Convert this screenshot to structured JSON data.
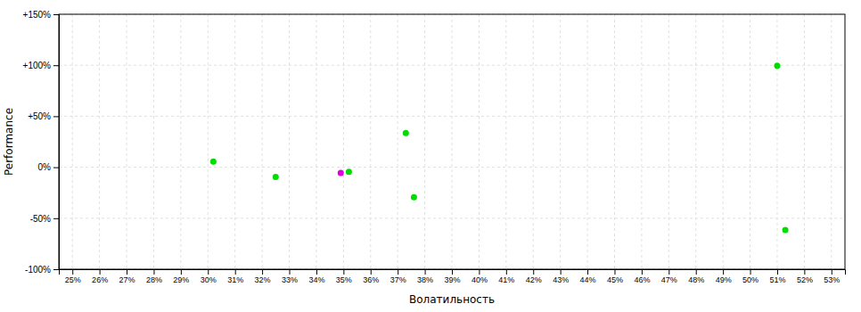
{
  "chart_data": {
    "type": "scatter",
    "xlabel": "Волатильность",
    "ylabel": "Performance",
    "x": [
      0.302,
      0.325,
      0.349,
      0.352,
      0.373,
      0.376,
      0.51,
      0.513
    ],
    "values": [
      0.055,
      -0.095,
      -0.055,
      -0.045,
      0.335,
      -0.295,
      0.995,
      -0.615
    ],
    "colors": [
      "#00dd00",
      "#00dd00",
      "#dd00dd",
      "#00dd00",
      "#00dd00",
      "#00dd00",
      "#00dd00",
      "#00dd00"
    ],
    "xlim": [
      0.245,
      0.535
    ],
    "ylim": [
      -1.0,
      1.5
    ],
    "xticks": [
      {
        "value": 0.25,
        "label": "25%"
      },
      {
        "value": 0.26,
        "label": "26%"
      },
      {
        "value": 0.27,
        "label": "27%"
      },
      {
        "value": 0.28,
        "label": "28%"
      },
      {
        "value": 0.29,
        "label": "29%"
      },
      {
        "value": 0.3,
        "label": "30%"
      },
      {
        "value": 0.31,
        "label": "31%"
      },
      {
        "value": 0.32,
        "label": "32%"
      },
      {
        "value": 0.33,
        "label": "33%"
      },
      {
        "value": 0.34,
        "label": "34%"
      },
      {
        "value": 0.35,
        "label": "35%"
      },
      {
        "value": 0.36,
        "label": "36%"
      },
      {
        "value": 0.37,
        "label": "37%"
      },
      {
        "value": 0.38,
        "label": "38%"
      },
      {
        "value": 0.39,
        "label": "39%"
      },
      {
        "value": 0.4,
        "label": "40%"
      },
      {
        "value": 0.41,
        "label": "41%"
      },
      {
        "value": 0.42,
        "label": "42%"
      },
      {
        "value": 0.43,
        "label": "43%"
      },
      {
        "value": 0.44,
        "label": "44%"
      },
      {
        "value": 0.45,
        "label": "45%"
      },
      {
        "value": 0.46,
        "label": "46%"
      },
      {
        "value": 0.47,
        "label": "47%"
      },
      {
        "value": 0.48,
        "label": "48%"
      },
      {
        "value": 0.49,
        "label": "49%"
      },
      {
        "value": 0.5,
        "label": "50%"
      },
      {
        "value": 0.51,
        "label": "51%"
      },
      {
        "value": 0.52,
        "label": "52%"
      },
      {
        "value": 0.53,
        "label": "53%"
      }
    ],
    "yticks": [
      {
        "value": -1.0,
        "label": "-100%"
      },
      {
        "value": -0.5,
        "label": "-50%"
      },
      {
        "value": 0.0,
        "label": "0%"
      },
      {
        "value": 0.5,
        "label": "+50%"
      },
      {
        "value": 1.0,
        "label": "+100%"
      },
      {
        "value": 1.5,
        "label": "+150%"
      }
    ],
    "grid": true
  }
}
